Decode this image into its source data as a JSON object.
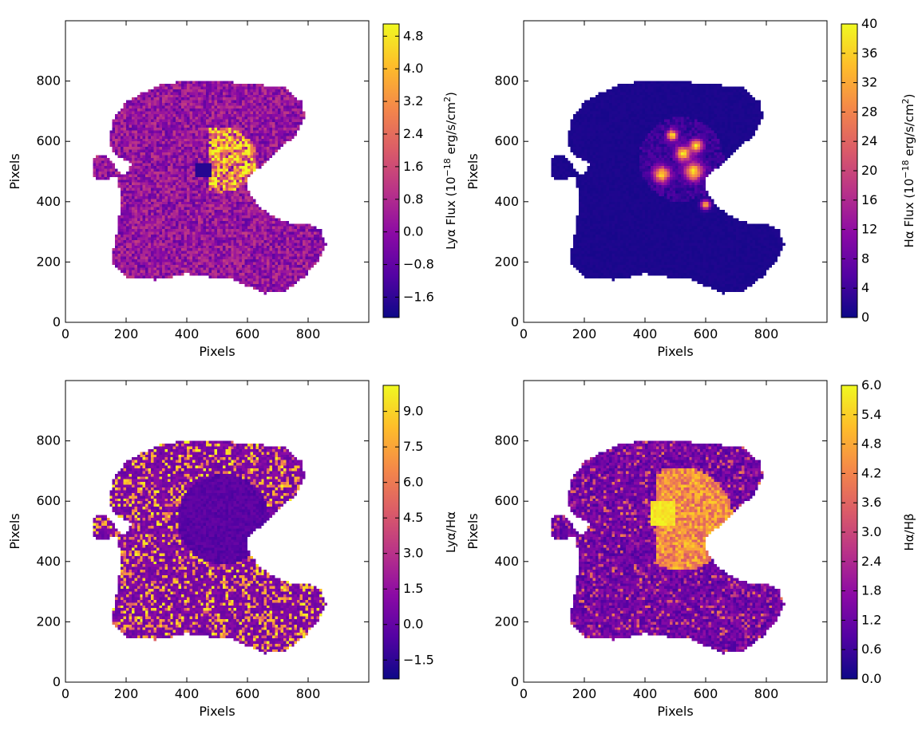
{
  "colormap": [
    "#0d0887",
    "#5302a3",
    "#8b0aa5",
    "#b83289",
    "#db5c68",
    "#f48849",
    "#febd2a",
    "#f0f921"
  ],
  "chart_data": [
    {
      "type": "heatmap",
      "panel": "top-left",
      "xlabel": "Pixels",
      "ylabel": "Pixels",
      "xlim": [
        0,
        1000
      ],
      "ylim": [
        0,
        1000
      ],
      "xticks": [
        "0",
        "200",
        "400",
        "600",
        "800"
      ],
      "yticks": [
        "0",
        "200",
        "400",
        "600",
        "800"
      ],
      "colorbar": {
        "label_main": "Lyα Flux (10",
        "label_exp": "−18",
        "label_units": " erg/s/cm",
        "label_sq": "2",
        "label_close": ")",
        "range": [
          -2.1,
          5.1
        ],
        "ticks": [
          -1.6,
          -0.8,
          0.0,
          0.8,
          1.6,
          2.4,
          3.2,
          4.0,
          4.8
        ],
        "tick_labels": [
          "−1.6",
          "−0.8",
          "0.0",
          "0.8",
          "1.6",
          "2.4",
          "3.2",
          "4.0",
          "4.8"
        ]
      },
      "pattern": "noise"
    },
    {
      "type": "heatmap",
      "panel": "top-right",
      "xlabel": "Pixels",
      "ylabel": "Pixels",
      "xlim": [
        0,
        1000
      ],
      "ylim": [
        0,
        1000
      ],
      "xticks": [
        "0",
        "200",
        "400",
        "600",
        "800"
      ],
      "yticks": [
        "0",
        "200",
        "400",
        "600",
        "800"
      ],
      "colorbar": {
        "label_main": "Hα Flux (10",
        "label_exp": "−18",
        "label_units": " erg/s/cm",
        "label_sq": "2",
        "label_close": ")",
        "range": [
          0,
          40
        ],
        "ticks": [
          0,
          4,
          8,
          12,
          16,
          20,
          24,
          28,
          32,
          36,
          40
        ],
        "tick_labels": [
          "0",
          "4",
          "8",
          "12",
          "16",
          "20",
          "24",
          "28",
          "32",
          "36",
          "40"
        ]
      },
      "pattern": "smooth"
    },
    {
      "type": "heatmap",
      "panel": "bottom-left",
      "xlabel": "Pixels",
      "ylabel": "Pixels",
      "xlim": [
        0,
        1000
      ],
      "ylim": [
        0,
        1000
      ],
      "xticks": [
        "0",
        "200",
        "400",
        "600",
        "800"
      ],
      "yticks": [
        "0",
        "200",
        "400",
        "600",
        "800"
      ],
      "colorbar": {
        "label_main": "Lyα/Hα",
        "range": [
          -2.3,
          10.1
        ],
        "ticks": [
          -1.5,
          0.0,
          1.5,
          3.0,
          4.5,
          6.0,
          7.5,
          9.0
        ],
        "tick_labels": [
          "−1.5",
          "0.0",
          "1.5",
          "3.0",
          "4.5",
          "6.0",
          "7.5",
          "9.0"
        ]
      },
      "pattern": "ratio"
    },
    {
      "type": "heatmap",
      "panel": "bottom-right",
      "xlabel": "Pixels",
      "ylabel": "Pixels",
      "xlim": [
        0,
        1000
      ],
      "ylim": [
        0,
        1000
      ],
      "xticks": [
        "0",
        "200",
        "400",
        "600",
        "800"
      ],
      "yticks": [
        "0",
        "200",
        "400",
        "600",
        "800"
      ],
      "colorbar": {
        "label_main": "Hα/Hβ",
        "range": [
          0.0,
          6.0
        ],
        "ticks": [
          0.0,
          0.6,
          1.2,
          1.8,
          2.4,
          3.0,
          3.6,
          4.2,
          4.8,
          5.4,
          6.0
        ],
        "tick_labels": [
          "0.0",
          "0.6",
          "1.2",
          "1.8",
          "2.4",
          "3.0",
          "3.6",
          "4.2",
          "4.8",
          "5.4",
          "6.0"
        ]
      },
      "pattern": "balmer"
    }
  ]
}
